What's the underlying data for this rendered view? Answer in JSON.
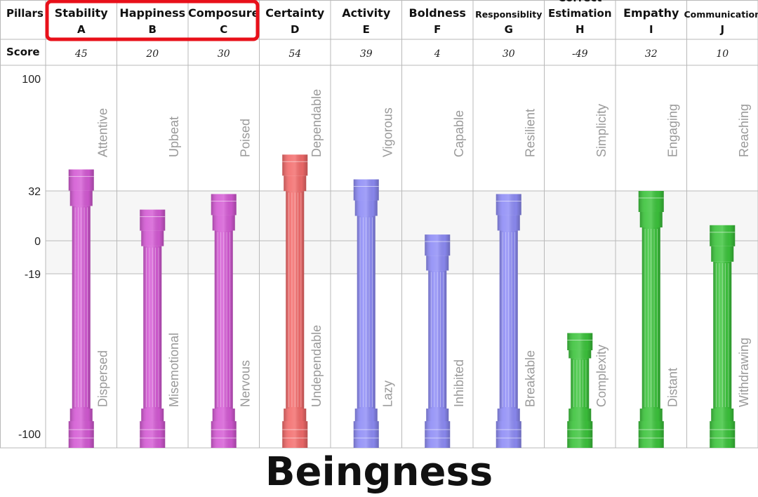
{
  "header": {
    "pillars_label": "Pillars",
    "score_label": "Score"
  },
  "colors": {
    "magenta": "#d45ad4",
    "red": "#f36b6b",
    "blue": "#8e8cf6",
    "green": "#3cc43c",
    "highlight": "#e8101a",
    "grid": "#b9b9b9"
  },
  "chart_data": {
    "type": "bar",
    "title": "Beingness",
    "y_ticks": [
      100,
      32,
      0,
      -19,
      -100
    ],
    "ylim": [
      -100,
      100
    ],
    "grid": true,
    "highlighted_categories": [
      "A",
      "B",
      "C"
    ],
    "categories": [
      {
        "name": "Stability",
        "letter": "A",
        "score": 45,
        "score_label": "45",
        "top_trait": "Attentive",
        "bottom_trait": "Dispersed",
        "color": "magenta"
      },
      {
        "name": "Happiness",
        "letter": "B",
        "score": 20,
        "score_label": "20",
        "top_trait": "Upbeat",
        "bottom_trait": "Misemotional",
        "color": "magenta"
      },
      {
        "name": "Composure",
        "letter": "C",
        "score": 30,
        "score_label": "30",
        "top_trait": "Poised",
        "bottom_trait": "Nervous",
        "color": "magenta"
      },
      {
        "name": "Certainty",
        "letter": "D",
        "score": 54,
        "score_label": "54",
        "top_trait": "Dependable",
        "bottom_trait": "Undependable",
        "color": "red"
      },
      {
        "name": "Activity",
        "letter": "E",
        "score": 39,
        "score_label": "39",
        "top_trait": "Vigorous",
        "bottom_trait": "Lazy",
        "color": "blue"
      },
      {
        "name": "Boldness",
        "letter": "F",
        "score": 4,
        "score_label": "4",
        "top_trait": "Capable",
        "bottom_trait": "Inhibited",
        "color": "blue"
      },
      {
        "name": "Responsiblity",
        "letter": "G",
        "score": 30,
        "score_label": "30",
        "top_trait": "Resilient",
        "bottom_trait": "Breakable",
        "color": "blue"
      },
      {
        "name": "Correct Estimation",
        "letter": "H",
        "score": -49,
        "score_label": "-49",
        "top_trait": "Simplicity",
        "bottom_trait": "Complexity",
        "color": "green"
      },
      {
        "name": "Empathy",
        "letter": "I",
        "score": 32,
        "score_label": "32",
        "top_trait": "Engaging",
        "bottom_trait": "Distant",
        "color": "green"
      },
      {
        "name": "Communication",
        "letter": "J",
        "score": 10,
        "score_label": "10",
        "top_trait": "Reaching",
        "bottom_trait": "Withdrawing",
        "color": "green"
      }
    ]
  }
}
